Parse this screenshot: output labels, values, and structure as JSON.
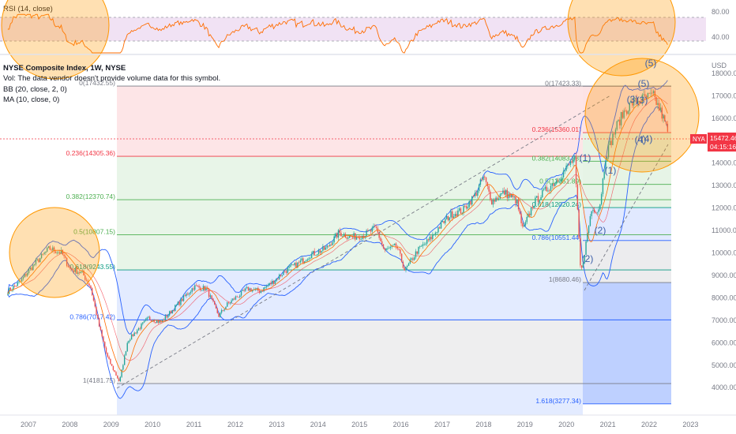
{
  "rsi": {
    "title": "RSI (14, close)",
    "levels": [
      80,
      40
    ],
    "level_labels": [
      "80.00",
      "40.00"
    ]
  },
  "header": {
    "title": "NYSE Composite Index, 1W, NYSE",
    "vol": "Vol: The data vendor doesn't provide volume data for this symbol.",
    "bb": "BB (20, close, 2, 0)",
    "ma": "MA (10, close, 0)"
  },
  "price_axis": {
    "currency": "USD",
    "ticks": [
      "18000.00",
      "17000.00",
      "16000.00",
      "15000.00",
      "14000.00",
      "13000.00",
      "12000.00",
      "11000.00",
      "10000.00",
      "9000.00",
      "8000.00",
      "7000.00",
      "6000.00",
      "5000.00",
      "4000.00"
    ],
    "last_symbol": "NYA",
    "last_price": "15472.46",
    "countdown": "04:15:16"
  },
  "time_axis": {
    "ticks": [
      "2007",
      "2008",
      "2009",
      "2010",
      "2011",
      "2012",
      "2013",
      "2014",
      "2015",
      "2016",
      "2017",
      "2018",
      "2019",
      "2020",
      "2021",
      "2022",
      "2023"
    ]
  },
  "fib_left": {
    "levels": [
      {
        "label": "0(17432.55)",
        "color": "#787b86"
      },
      {
        "label": "0.236(14305.36)",
        "color": "#f23645"
      },
      {
        "label": "0.382(12370.74)",
        "color": "#4caf50"
      },
      {
        "label": "0.5(10807.15)",
        "color": "#4caf50"
      },
      {
        "label": "0.618(9243.55)",
        "color": "#089981"
      },
      {
        "label": "0.786(7017.42)",
        "color": "#2962ff"
      },
      {
        "label": "1(4181.75)",
        "color": "#787b86"
      }
    ]
  },
  "fib_right": {
    "levels": [
      {
        "label": "0(17423.33)",
        "color": "#787b86"
      },
      {
        "label": "0.236(15360.01)",
        "color": "#f23645"
      },
      {
        "label": "0.382(14083.53)",
        "color": "#4caf50"
      },
      {
        "label": "0.5(13051.89)",
        "color": "#4caf50"
      },
      {
        "label": "0.618(12020.24)",
        "color": "#089981"
      },
      {
        "label": "0.786(10551.44)",
        "color": "#2962ff"
      },
      {
        "label": "1(8680.46)",
        "color": "#787b86"
      },
      {
        "label": "1.618(3277.34)",
        "color": "#2962ff"
      }
    ]
  },
  "waves": [
    "(1)",
    "(2)",
    "(1)",
    "(2)",
    "(3)",
    "(4)",
    "(5)",
    "(5)",
    "(3)",
    "(4)"
  ],
  "colors": {
    "up": "#26a69a",
    "down": "#ef5350",
    "bb": "#2962ff",
    "ma": "#ff6d00",
    "rsi": "#ff6d00",
    "circle": "#ff9800",
    "last": "#f23645"
  },
  "chart_data": {
    "type": "line",
    "title": "NYSE Composite Index, 1W, NYSE",
    "ylabel": "USD",
    "ylim": [
      3500,
      18700
    ],
    "xlim": [
      2006.5,
      2023.3
    ],
    "series": [
      {
        "x": [
          2006.5,
          2006.8,
          2007.0,
          2007.3,
          2007.5,
          2007.8,
          2008.0,
          2008.3,
          2008.5,
          2008.7,
          2008.9,
          2009.0,
          2009.2,
          2009.4,
          2009.6,
          2009.9,
          2010.2,
          2010.4,
          2010.7,
          2011.0,
          2011.3,
          2011.6,
          2011.8,
          2012.0,
          2012.3,
          2012.6,
          2012.9,
          2013.2,
          2013.5,
          2013.8,
          2014.2,
          2014.5,
          2014.8,
          2015.1,
          2015.4,
          2015.6,
          2015.9,
          2016.1,
          2016.4,
          2016.7,
          2016.9,
          2017.2,
          2017.5,
          2017.8,
          2018.0,
          2018.2,
          2018.5,
          2018.8,
          2018.95,
          2019.2,
          2019.5,
          2019.8,
          2020.1,
          2020.2,
          2020.35,
          2020.6,
          2020.8,
          2020.95,
          2021.2,
          2021.4,
          2021.6,
          2021.9,
          2022.1,
          2022.3,
          2022.45
        ],
        "y": [
          8300,
          8700,
          9200,
          9800,
          10200,
          10000,
          9300,
          9100,
          8500,
          6800,
          5400,
          5000,
          4250,
          6100,
          6500,
          7100,
          6900,
          7300,
          7900,
          8500,
          8400,
          7200,
          7700,
          8000,
          8400,
          8300,
          8700,
          9200,
          9500,
          9900,
          10200,
          10900,
          10700,
          10800,
          11100,
          10100,
          10300,
          9200,
          10100,
          10600,
          11100,
          11700,
          11900,
          12600,
          13400,
          12300,
          12700,
          12300,
          11000,
          12200,
          12800,
          13300,
          14000,
          14200,
          9000,
          11900,
          12000,
          14300,
          15600,
          16300,
          16700,
          16900,
          17000,
          16200,
          15400
        ]
      }
    ],
    "annotations": [
      "0(17432.55)",
      "0.236(14305.36)",
      "0.382(12370.74)",
      "0.5(10807.15)",
      "0.618(9243.55)",
      "0.786(7017.42)",
      "1(4181.75)",
      "0(17423.33)",
      "0.236(15360.01)",
      "0.382(14083.53)",
      "0.5(13051.89)",
      "0.618(12020.24)",
      "0.786(10551.44)",
      "1(8680.46)",
      "1.618(3277.34)"
    ]
  }
}
